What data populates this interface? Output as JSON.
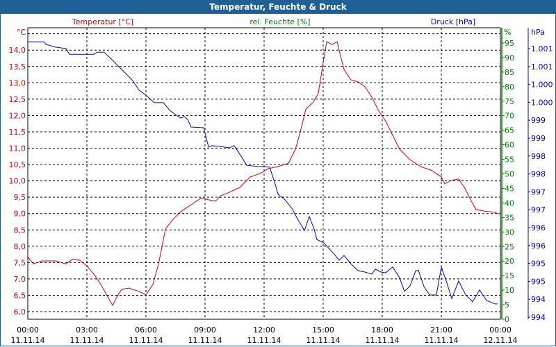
{
  "window": {
    "title": "Temperatur, Feuchte & Druck"
  },
  "colors": {
    "temperature": "#d40000",
    "humidity": "#008000",
    "pressure": "#0000d0",
    "title_bg": "#1f6096"
  },
  "chart_data": {
    "type": "line",
    "title": "Temperatur, Feuchte & Druck",
    "legend": [
      {
        "label": "Temperatur [°C]",
        "color": "#d40000"
      },
      {
        "label": "rel. Feuchte [%]",
        "color": "#008000"
      },
      {
        "label": "Druck [hPa]",
        "color": "#0000d0"
      }
    ],
    "axes": {
      "left": {
        "unit": "°C",
        "range": [
          6.0,
          14.5
        ],
        "ticks": [
          "6,0",
          "6,5",
          "7,0",
          "7,5",
          "8,0",
          "8,5",
          "9,0",
          "9,5",
          "10,0",
          "10,5",
          "11,0",
          "11,5",
          "12,0",
          "12,5",
          "13,0",
          "13,5",
          "14,0"
        ]
      },
      "humidity": {
        "unit": "%",
        "range": [
          0,
          95
        ],
        "ticks": [
          "0",
          "5",
          "10",
          "15",
          "20",
          "25",
          "30",
          "35",
          "40",
          "45",
          "50",
          "55",
          "60",
          "65",
          "70",
          "75",
          "80",
          "85",
          "90",
          "95"
        ]
      },
      "pressure": {
        "unit": "hPa",
        "range": [
          994,
          1001.5
        ],
        "ticks": [
          "994",
          "994",
          "995",
          "995",
          "996",
          "996",
          "997",
          "997",
          "998",
          "998",
          "999",
          "999",
          "1.000",
          "1.000",
          "1.001",
          "1.001"
        ]
      },
      "x": {
        "range_hours": [
          0,
          24
        ],
        "ticks": [
          {
            "time": "00:00",
            "date": "11.11.14"
          },
          {
            "time": "03:00",
            "date": "11.11.14"
          },
          {
            "time": "06:00",
            "date": "11.11.14"
          },
          {
            "time": "09:00",
            "date": "11.11.14"
          },
          {
            "time": "12:00",
            "date": "11.11.14"
          },
          {
            "time": "15:00",
            "date": "11.11.14"
          },
          {
            "time": "18:00",
            "date": "11.11.14"
          },
          {
            "time": "21:00",
            "date": "11.11.14"
          },
          {
            "time": "00:00",
            "date": "12.11.14"
          }
        ]
      }
    },
    "grid": true,
    "series": [
      {
        "name": "Temperatur",
        "axis": "left",
        "points": [
          [
            0,
            7.68
          ],
          [
            0.28,
            7.46
          ],
          [
            0.71,
            7.55
          ],
          [
            1.41,
            7.55
          ],
          [
            1.94,
            7.46
          ],
          [
            2.29,
            7.61
          ],
          [
            2.65,
            7.57
          ],
          [
            3.0,
            7.4
          ],
          [
            3.35,
            7.15
          ],
          [
            3.71,
            6.83
          ],
          [
            4.06,
            6.45
          ],
          [
            4.31,
            6.19
          ],
          [
            4.52,
            6.45
          ],
          [
            4.76,
            6.68
          ],
          [
            5.12,
            6.72
          ],
          [
            5.65,
            6.62
          ],
          [
            6.0,
            6.51
          ],
          [
            6.35,
            6.83
          ],
          [
            6.64,
            7.46
          ],
          [
            6.99,
            8.53
          ],
          [
            7.41,
            8.85
          ],
          [
            7.77,
            9.06
          ],
          [
            8.29,
            9.27
          ],
          [
            8.82,
            9.48
          ],
          [
            9.18,
            9.42
          ],
          [
            9.53,
            9.38
          ],
          [
            9.81,
            9.55
          ],
          [
            10.24,
            9.65
          ],
          [
            10.77,
            9.8
          ],
          [
            11.3,
            10.12
          ],
          [
            11.82,
            10.23
          ],
          [
            12.18,
            10.37
          ],
          [
            12.71,
            10.44
          ],
          [
            13.24,
            10.54
          ],
          [
            13.59,
            10.97
          ],
          [
            13.84,
            11.5
          ],
          [
            14.12,
            12.2
          ],
          [
            14.47,
            12.39
          ],
          [
            14.75,
            12.67
          ],
          [
            15.0,
            13.62
          ],
          [
            15.18,
            14.26
          ],
          [
            15.46,
            14.17
          ],
          [
            15.71,
            14.26
          ],
          [
            15.88,
            13.83
          ],
          [
            16.06,
            13.41
          ],
          [
            16.41,
            13.09
          ],
          [
            16.77,
            13.03
          ],
          [
            17.12,
            12.88
          ],
          [
            17.47,
            12.56
          ],
          [
            17.82,
            12.14
          ],
          [
            18.18,
            11.82
          ],
          [
            18.53,
            11.39
          ],
          [
            18.88,
            10.97
          ],
          [
            19.41,
            10.65
          ],
          [
            19.94,
            10.44
          ],
          [
            20.47,
            10.33
          ],
          [
            21.0,
            10.12
          ],
          [
            21.18,
            9.91
          ],
          [
            21.46,
            10.01
          ],
          [
            21.88,
            10.06
          ],
          [
            22.17,
            9.8
          ],
          [
            22.52,
            9.38
          ],
          [
            22.77,
            9.12
          ],
          [
            23.12,
            9.08
          ],
          [
            23.65,
            9.04
          ],
          [
            23.93,
            8.99
          ]
        ]
      },
      {
        "name": "Druck",
        "axis": "pressure",
        "points": [
          [
            0,
            1001.69
          ],
          [
            0.81,
            1001.69
          ],
          [
            0.92,
            1001.62
          ],
          [
            1.41,
            1001.54
          ],
          [
            1.94,
            1001.5
          ],
          [
            2.12,
            1001.34
          ],
          [
            3.35,
            1001.34
          ],
          [
            3.53,
            1001.4
          ],
          [
            3.88,
            1001.4
          ],
          [
            4.24,
            1001.21
          ],
          [
            4.76,
            1000.92
          ],
          [
            5.29,
            1000.63
          ],
          [
            5.65,
            1000.34
          ],
          [
            6.0,
            1000.2
          ],
          [
            6.42,
            999.99
          ],
          [
            6.88,
            999.99
          ],
          [
            7.24,
            999.76
          ],
          [
            7.59,
            999.62
          ],
          [
            7.77,
            999.56
          ],
          [
            7.94,
            999.6
          ],
          [
            8.12,
            999.52
          ],
          [
            8.29,
            999.31
          ],
          [
            8.93,
            999.29
          ],
          [
            9.18,
            998.75
          ],
          [
            9.35,
            998.79
          ],
          [
            10.24,
            998.73
          ],
          [
            10.48,
            998.79
          ],
          [
            10.77,
            998.55
          ],
          [
            11.12,
            998.24
          ],
          [
            11.65,
            998.21
          ],
          [
            12.28,
            998.19
          ],
          [
            12.53,
            997.78
          ],
          [
            12.71,
            997.43
          ],
          [
            13.06,
            997.28
          ],
          [
            13.41,
            997.04
          ],
          [
            13.69,
            996.75
          ],
          [
            14.05,
            996.42
          ],
          [
            14.29,
            996.81
          ],
          [
            14.54,
            996.46
          ],
          [
            14.68,
            996.17
          ],
          [
            15.04,
            996.07
          ],
          [
            15.53,
            995.78
          ],
          [
            15.81,
            995.59
          ],
          [
            16.06,
            995.72
          ],
          [
            16.41,
            995.49
          ],
          [
            16.77,
            995.3
          ],
          [
            17.12,
            995.26
          ],
          [
            17.47,
            995.2
          ],
          [
            17.65,
            995.34
          ],
          [
            17.93,
            995.26
          ],
          [
            18.18,
            995.24
          ],
          [
            18.53,
            995.4
          ],
          [
            18.88,
            995.1
          ],
          [
            19.13,
            994.72
          ],
          [
            19.41,
            994.87
          ],
          [
            19.7,
            995.3
          ],
          [
            19.84,
            995.3
          ],
          [
            20.12,
            994.85
          ],
          [
            20.4,
            994.62
          ],
          [
            20.75,
            994.62
          ],
          [
            21.0,
            995.4
          ],
          [
            21.25,
            995.01
          ],
          [
            21.53,
            994.52
          ],
          [
            21.88,
            995.01
          ],
          [
            22.24,
            994.62
          ],
          [
            22.59,
            994.43
          ],
          [
            22.94,
            994.76
          ],
          [
            23.29,
            994.47
          ],
          [
            23.72,
            994.37
          ],
          [
            23.86,
            994.37
          ]
        ]
      }
    ]
  }
}
